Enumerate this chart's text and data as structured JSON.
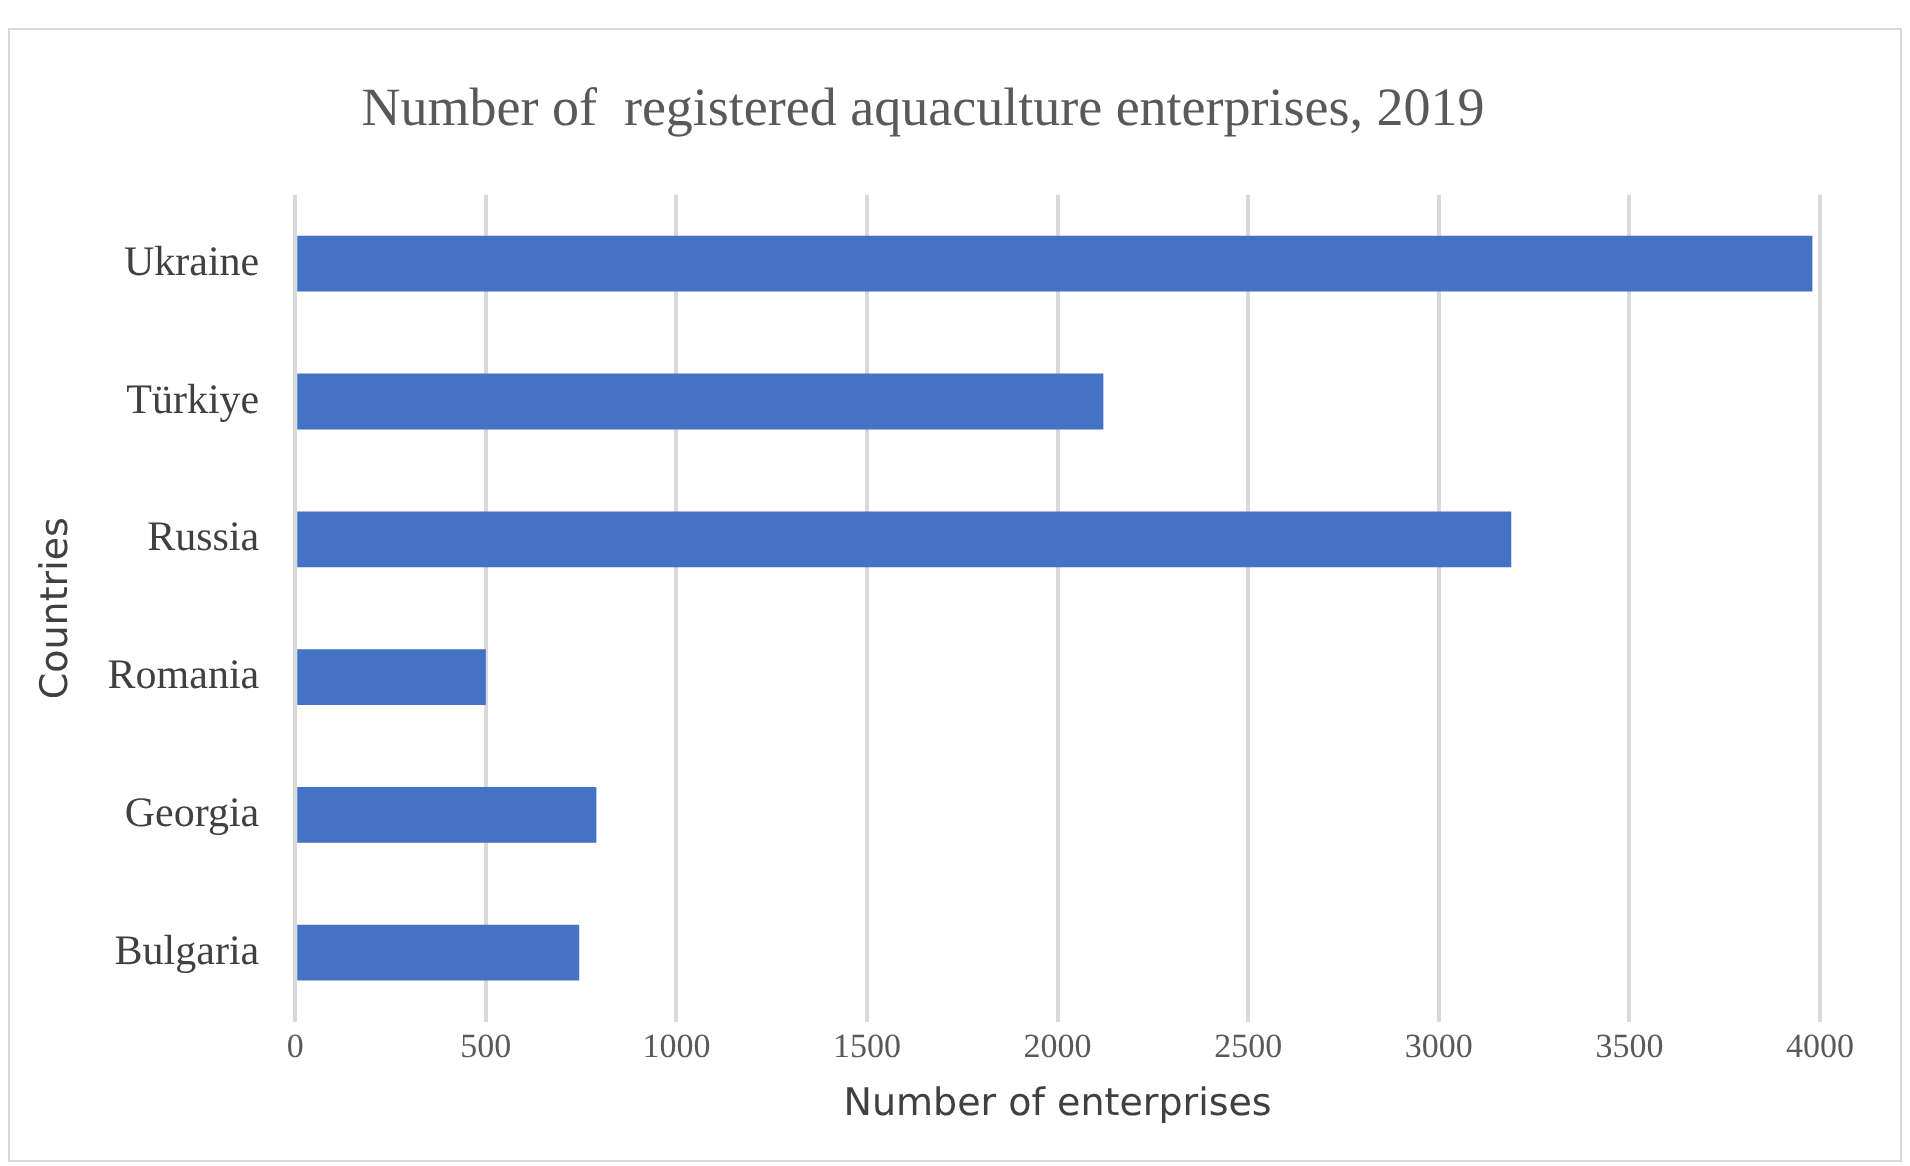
{
  "chart_data": {
    "type": "bar",
    "orientation": "horizontal",
    "title": "Number of  registered aquaculture enterprises, 2019",
    "xlabel": "Number of enterprises",
    "ylabel": "Countries",
    "categories": [
      "Ukraine",
      "Türkiye",
      "Russia",
      "Romania",
      "Georgia",
      "Bulgaria"
    ],
    "values": [
      3980,
      2120,
      3190,
      500,
      790,
      745
    ],
    "color": "#4472c4",
    "xlim": [
      0,
      4000
    ],
    "xticks": [
      0,
      500,
      1000,
      1500,
      2000,
      2500,
      3000,
      3500,
      4000
    ],
    "grid": "x",
    "legend": false
  }
}
